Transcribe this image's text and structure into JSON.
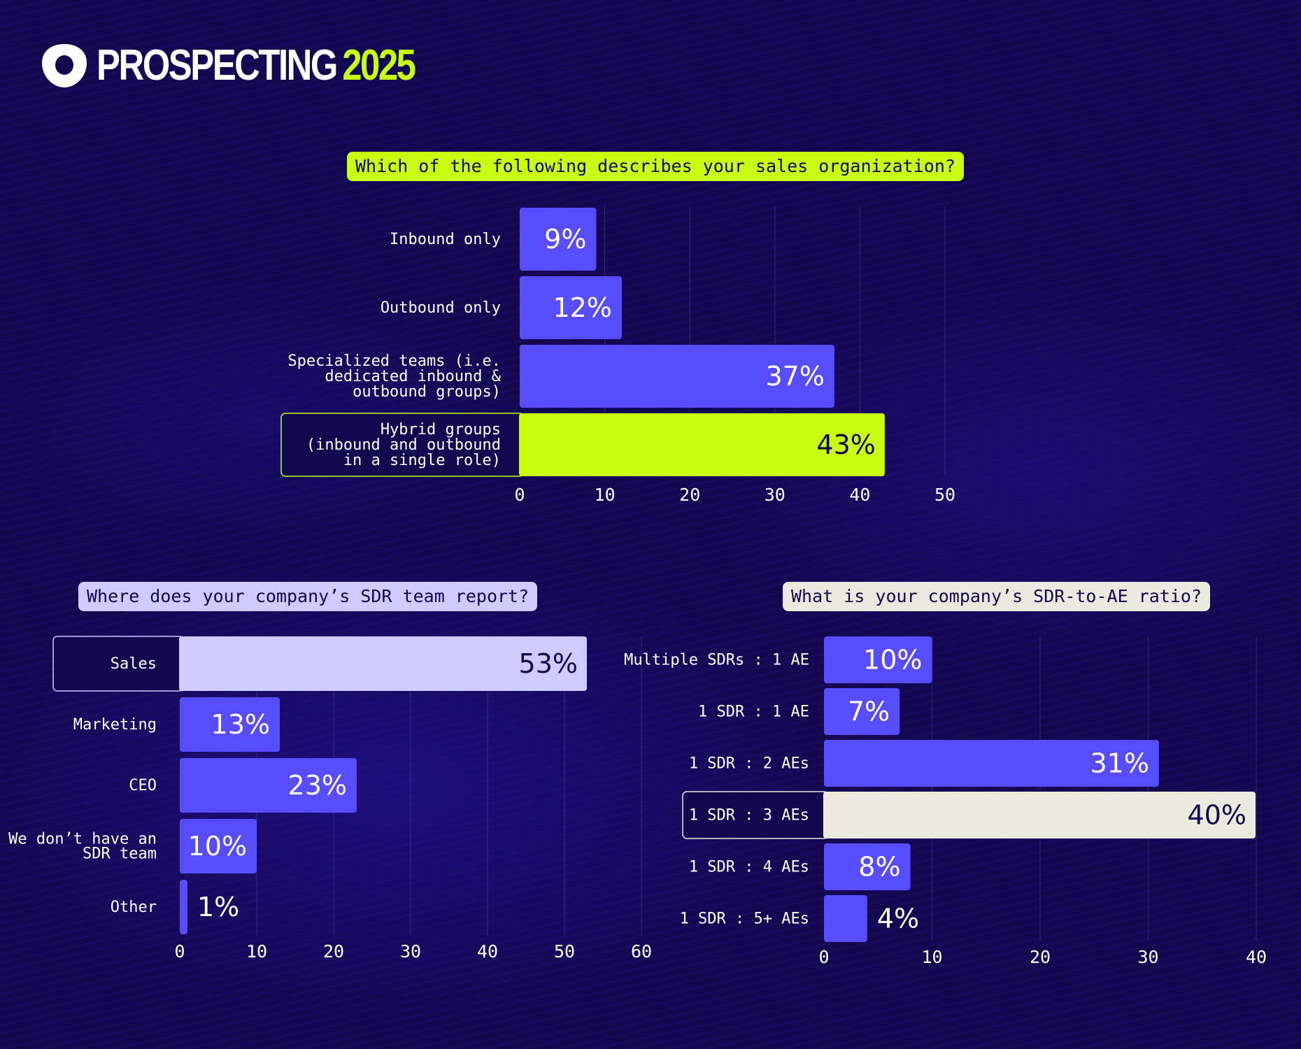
{
  "brand": {
    "name": "PROSPECTING",
    "year": "2025"
  },
  "colors": {
    "background": "#13074f",
    "bar": "#574cff",
    "highlight_green": "#c8ff10",
    "highlight_lavender": "#cfcaff",
    "highlight_cream": "#ece9df",
    "dark_text": "#13074f"
  },
  "chart_data": [
    {
      "type": "bar",
      "orientation": "horizontal",
      "title": "Which of the following describes your sales organization?",
      "categories": [
        [
          "Inbound only"
        ],
        [
          "Outbound only"
        ],
        [
          "Specialized teams (i.e.",
          "dedicated inbound &",
          "outbound groups)"
        ],
        [
          "Hybrid groups",
          "(inbound and outbound",
          "in a single role)"
        ]
      ],
      "values": [
        9,
        12,
        37,
        43
      ],
      "value_labels": [
        "9%",
        "12%",
        "37%",
        "43%"
      ],
      "highlight_index": 3,
      "highlight_color": "#c8ff10",
      "xlim": [
        0,
        58
      ],
      "xticks": [
        0,
        10,
        20,
        30,
        40,
        50
      ],
      "grid": true
    },
    {
      "type": "bar",
      "orientation": "horizontal",
      "title": "Where does your company’s SDR team report?",
      "categories": [
        [
          "Sales"
        ],
        [
          "Marketing"
        ],
        [
          "CEO"
        ],
        [
          "We don’t have an",
          "SDR team"
        ],
        [
          "Other"
        ]
      ],
      "values": [
        53,
        13,
        23,
        10,
        1
      ],
      "value_labels": [
        "53%",
        "13%",
        "23%",
        "10%",
        "1%"
      ],
      "highlight_index": 0,
      "highlight_color": "#cfcaff",
      "xlim": [
        0,
        60
      ],
      "xticks": [
        0,
        10,
        20,
        30,
        40,
        50,
        60
      ],
      "grid": true
    },
    {
      "type": "bar",
      "orientation": "horizontal",
      "title": "What is your company’s SDR-to-AE ratio?",
      "categories": [
        [
          "Multiple SDRs : 1 AE"
        ],
        [
          "1 SDR : 1 AE"
        ],
        [
          "1 SDR : 2 AEs"
        ],
        [
          "1 SDR : 3 AEs"
        ],
        [
          "1 SDR : 4 AEs"
        ],
        [
          "1 SDR : 5+ AEs"
        ]
      ],
      "values": [
        10,
        7,
        31,
        40,
        8,
        4
      ],
      "value_labels": [
        "10%",
        "7%",
        "31%",
        "40%",
        "8%",
        "4%"
      ],
      "highlight_index": 3,
      "highlight_color": "#ece9df",
      "xlim": [
        0,
        40
      ],
      "xticks": [
        0,
        10,
        20,
        30,
        40
      ],
      "grid": true
    }
  ]
}
